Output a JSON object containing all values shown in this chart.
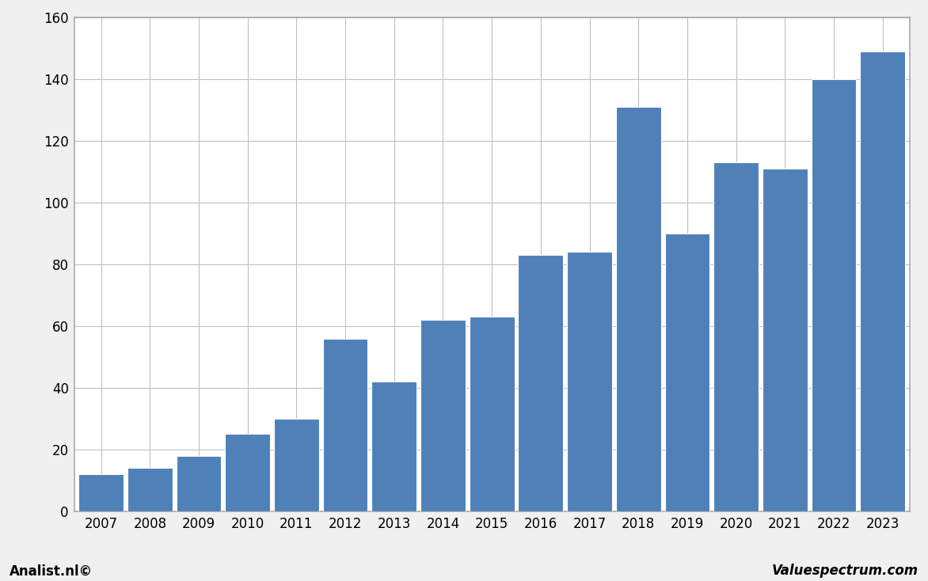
{
  "years": [
    2007,
    2008,
    2009,
    2010,
    2011,
    2012,
    2013,
    2014,
    2015,
    2016,
    2017,
    2018,
    2019,
    2020,
    2021,
    2022,
    2023
  ],
  "values": [
    12,
    14,
    18,
    25,
    30,
    56,
    42,
    62,
    63,
    83,
    84,
    131,
    90,
    113,
    111,
    140,
    149
  ],
  "bar_color": "#5080b8",
  "ylim": [
    0,
    160
  ],
  "yticks": [
    0,
    20,
    40,
    60,
    80,
    100,
    120,
    140,
    160
  ],
  "background_color": "#f0f0f0",
  "plot_bg_color": "#ffffff",
  "grid_color": "#c0c0c0",
  "border_color": "#aaaaaa",
  "footer_left": "Analist.nl©",
  "footer_right": "Valuespectrum.com",
  "footer_fontsize": 12,
  "tick_fontsize": 12,
  "bar_edge_color": "#ffffff",
  "bar_linewidth": 0.8,
  "bar_width": 0.92
}
